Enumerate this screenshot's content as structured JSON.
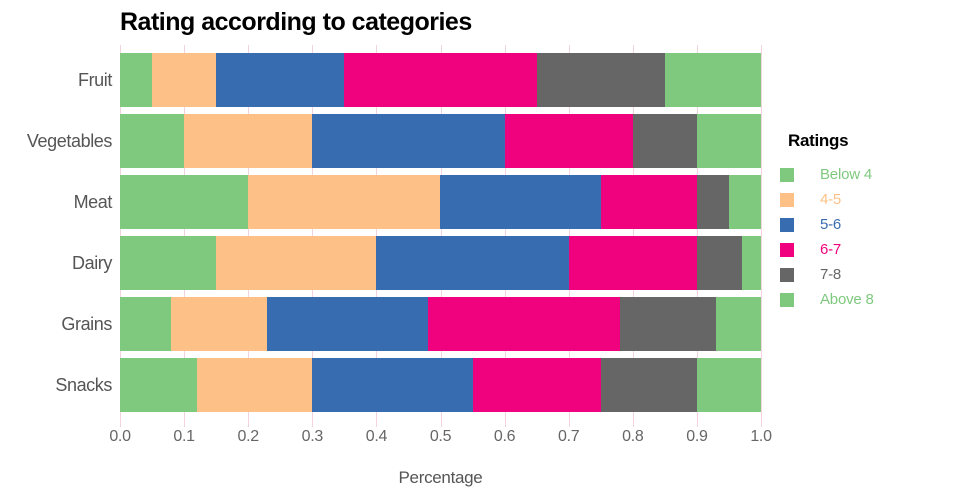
{
  "chart_data": {
    "type": "bar",
    "orientation": "horizontal",
    "stacked": true,
    "title": "Rating according to categories",
    "xlabel": "Percentage",
    "ylabel": "",
    "xlim": [
      0.0,
      1.0
    ],
    "xticks": [
      "0.0",
      "0.1",
      "0.2",
      "0.3",
      "0.4",
      "0.5",
      "0.6",
      "0.7",
      "0.8",
      "0.9",
      "1.0"
    ],
    "grid": "vertical",
    "gridline_color": "#F5D2E0",
    "axis_text_color": "#666666",
    "legend_title": "Ratings",
    "legend_position": "right",
    "categories": [
      "Fruit",
      "Vegetables",
      "Meat",
      "Dairy",
      "Grains",
      "Snacks"
    ],
    "series": [
      {
        "name": "Below 4",
        "color": "#7FC97F",
        "values": [
          0.05,
          0.1,
          0.2,
          0.15,
          0.08,
          0.12
        ]
      },
      {
        "name": "4-5",
        "color": "#FDC086",
        "values": [
          0.1,
          0.2,
          0.3,
          0.25,
          0.15,
          0.18
        ]
      },
      {
        "name": "5-6",
        "color": "#386CB0",
        "values": [
          0.2,
          0.3,
          0.25,
          0.3,
          0.25,
          0.25
        ]
      },
      {
        "name": "6-7",
        "color": "#F0027F",
        "values": [
          0.3,
          0.2,
          0.15,
          0.2,
          0.3,
          0.2
        ]
      },
      {
        "name": "7-8",
        "color": "#666666",
        "values": [
          0.2,
          0.1,
          0.05,
          0.07,
          0.15,
          0.15
        ]
      },
      {
        "name": "Above 8",
        "color": "#7FC97F",
        "values": [
          0.15,
          0.1,
          0.05,
          0.03,
          0.07,
          0.1
        ]
      }
    ]
  }
}
